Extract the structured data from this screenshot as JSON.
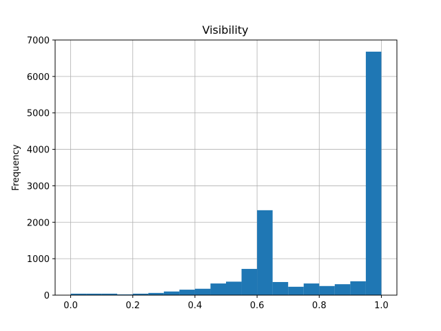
{
  "chart_data": {
    "type": "bar",
    "title": "Visibility",
    "xlabel": "",
    "ylabel": "Frequency",
    "xlim": [
      -0.05,
      1.05
    ],
    "ylim": [
      0,
      7000
    ],
    "xticks": [
      "0.0",
      "0.2",
      "0.4",
      "0.6",
      "0.8",
      "1.0"
    ],
    "yticks": [
      "0",
      "1000",
      "2000",
      "3000",
      "4000",
      "5000",
      "6000",
      "7000"
    ],
    "grid": true,
    "bar_color": "#1f77b4",
    "bin_edges": [
      0.0,
      0.05,
      0.1,
      0.15,
      0.2,
      0.25,
      0.3,
      0.35,
      0.4,
      0.45,
      0.5,
      0.55,
      0.6,
      0.65,
      0.7,
      0.75,
      0.8,
      0.85,
      0.9,
      0.95,
      1.0
    ],
    "values": [
      40,
      40,
      40,
      20,
      40,
      60,
      100,
      150,
      175,
      320,
      370,
      720,
      2330,
      360,
      230,
      320,
      250,
      300,
      380,
      6680
    ]
  }
}
